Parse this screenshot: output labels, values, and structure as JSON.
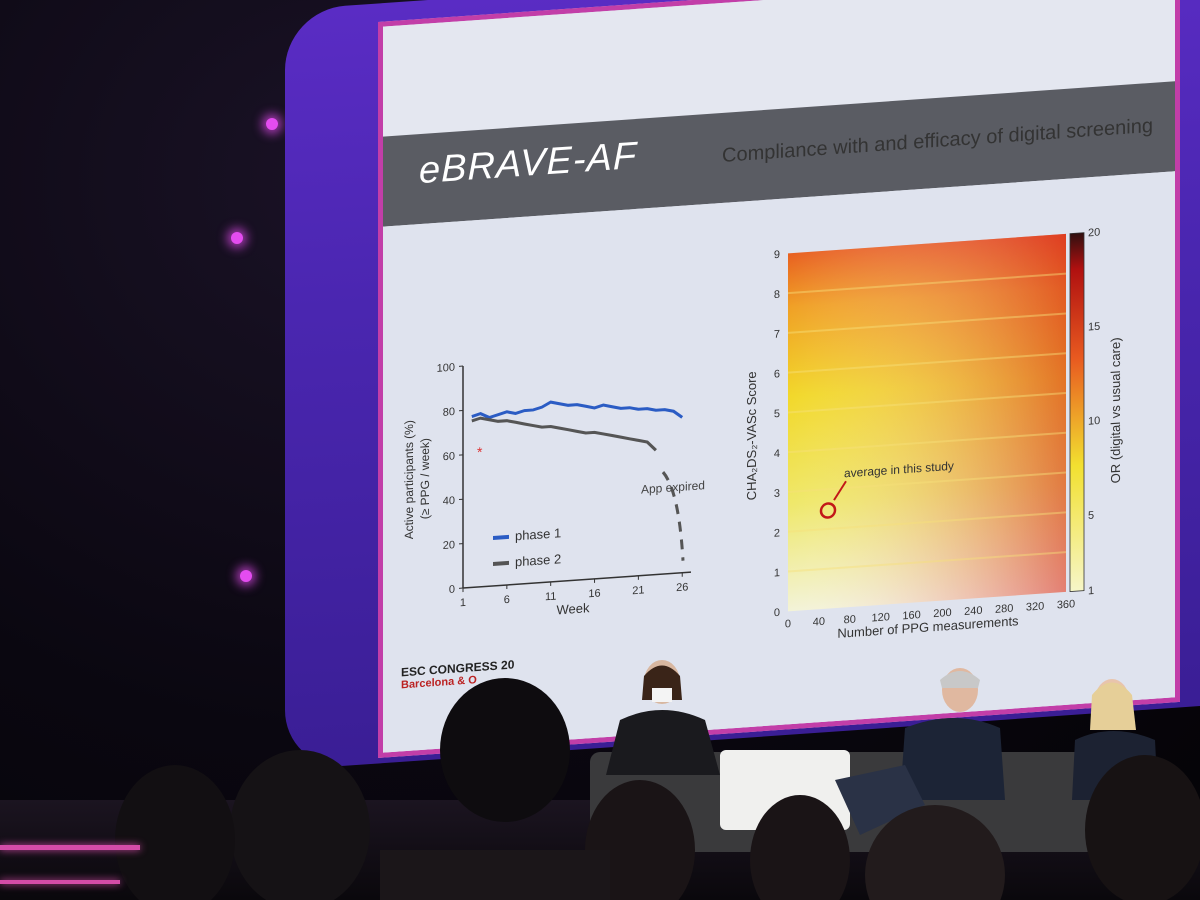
{
  "slide": {
    "title": "eBRAVE-AF",
    "subtitle": "Compliance with and efficacy of digital screening",
    "footer_line1": "ESC CONGRESS 20",
    "footer_line2": "Barcelona & O"
  },
  "left_chart": {
    "ylabel_line1": "Active participants (%)",
    "ylabel_line2": "(≥ PPG / week)",
    "xlabel": "Week",
    "yticks": [
      "0",
      "20",
      "40",
      "60",
      "80",
      "100"
    ],
    "xticks": [
      "1",
      "6",
      "11",
      "16",
      "21",
      "26"
    ],
    "legend": [
      "phase 1",
      "phase 2"
    ],
    "annotation": "App expired",
    "marker": "*"
  },
  "right_chart": {
    "ylabel": "CHA₂DS₂-VASc Score",
    "xlabel": "Number of PPG measurements",
    "colorbar_label": "OR (digital vs usual care)",
    "yticks": [
      "0",
      "1",
      "2",
      "3",
      "4",
      "5",
      "6",
      "7",
      "8",
      "9"
    ],
    "xticks": [
      "0",
      "40",
      "80",
      "120",
      "160",
      "200",
      "240",
      "280",
      "320",
      "360"
    ],
    "colorbar_ticks": [
      "1",
      "5",
      "10",
      "15",
      "20"
    ],
    "annotation": "average in this study"
  },
  "colors": {
    "phase1": "#2b5cc4",
    "phase2": "#555555",
    "frame": "#c23ea8",
    "backdrop": "#4a26b0"
  },
  "chart_data": [
    {
      "type": "line",
      "ylim": [
        0,
        100
      ],
      "series": [
        {
          "name": "phase 1",
          "x": [
            2,
            3,
            4,
            5,
            6,
            7,
            8,
            9,
            10,
            11,
            12,
            13,
            14,
            15,
            16,
            17,
            18,
            19,
            20,
            21,
            22,
            23,
            24,
            25,
            26
          ],
          "values": [
            77,
            78,
            76,
            77,
            78,
            77,
            78,
            78,
            79,
            81,
            80,
            79,
            79,
            78,
            77,
            78,
            77,
            76,
            76,
            75,
            75,
            74,
            74,
            73,
            70
          ]
        },
        {
          "name": "phase 2",
          "x": [
            2,
            3,
            4,
            5,
            6,
            7,
            8,
            9,
            10,
            11,
            12,
            13,
            14,
            15,
            16,
            17,
            18,
            19,
            20,
            21,
            22,
            23
          ],
          "values": [
            75,
            76,
            75,
            74,
            74,
            73,
            72,
            71,
            70,
            70,
            69,
            68,
            67,
            66,
            66,
            65,
            64,
            63,
            62,
            61,
            60,
            56
          ]
        }
      ]
    },
    {
      "type": "heatmap",
      "xlim": [
        0,
        360
      ],
      "ylim": [
        0,
        9
      ],
      "zlim": [
        1,
        20
      ]
    }
  ]
}
